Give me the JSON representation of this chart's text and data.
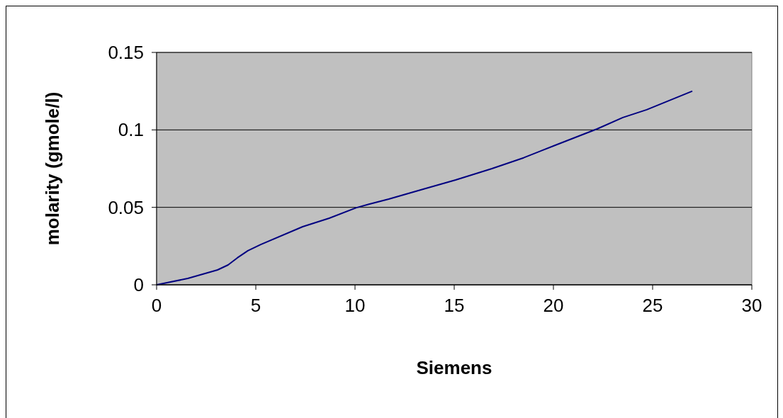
{
  "chart_data": {
    "type": "line",
    "xlabel": "Siemens",
    "ylabel": "molarity (gmole/l)",
    "xlim": [
      0,
      30
    ],
    "xticks": [
      0,
      5,
      10,
      15,
      20,
      25,
      30
    ],
    "ylim": [
      0,
      0.15
    ],
    "yticks": [
      0,
      0.05,
      0.1,
      0.15
    ],
    "grid": "y",
    "marker": "none",
    "series": [
      {
        "color": "#000080",
        "x": [
          0,
          1.57,
          3.07,
          3.6,
          4.07,
          4.6,
          5.25,
          7.36,
          8.7,
          10.07,
          10.7,
          11.7,
          13.5,
          15.07,
          16.9,
          18.5,
          20.07,
          22.2,
          23.5,
          24.7,
          27
        ],
        "values": [
          0,
          0.0041,
          0.0096,
          0.0128,
          0.0174,
          0.022,
          0.026,
          0.0375,
          0.043,
          0.0498,
          0.052,
          0.0553,
          0.062,
          0.0677,
          0.075,
          0.082,
          0.09,
          0.1006,
          0.108,
          0.113,
          0.125
        ]
      }
    ]
  }
}
